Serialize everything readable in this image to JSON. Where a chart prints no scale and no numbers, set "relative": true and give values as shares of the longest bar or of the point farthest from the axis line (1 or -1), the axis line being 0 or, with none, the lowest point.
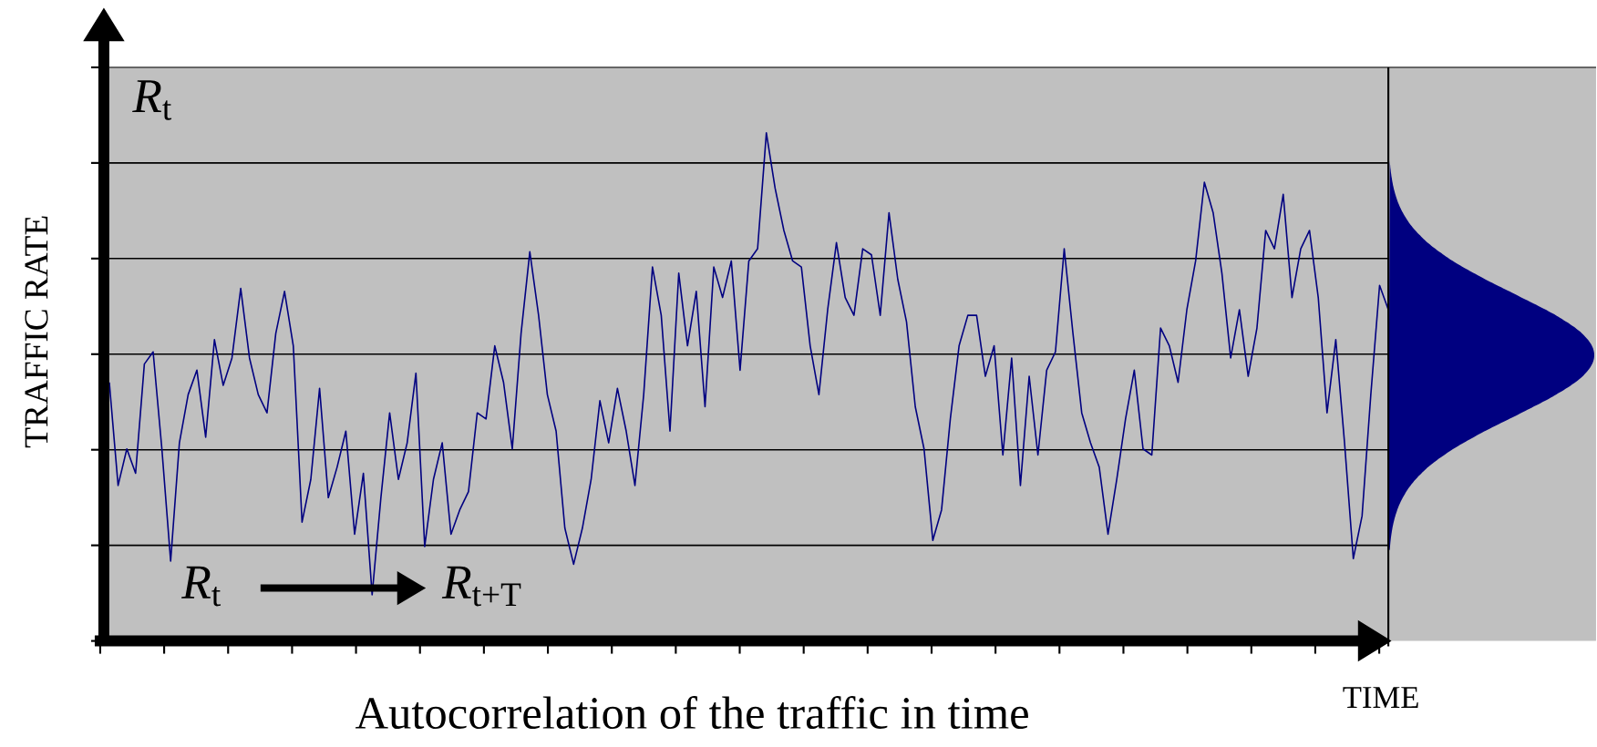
{
  "chart_data": {
    "type": "line",
    "title": "Autocorrelation of the traffic in time",
    "xlabel": "TIME",
    "ylabel": "TRAFFIC RATE",
    "annotations": [
      "*R*$_{t}$",
      "*R*$_{t}$",
      "*R*$_{t+T}$"
    ],
    "relative": true,
    "grid": "y",
    "categories": [
      null,
      null,
      null,
      null,
      null,
      null,
      null,
      null,
      null,
      null,
      null,
      null,
      null,
      null,
      null,
      null,
      null,
      null,
      null,
      null,
      null,
      null,
      null,
      null,
      null,
      null,
      null,
      null,
      null,
      null,
      null,
      null,
      null,
      null,
      null,
      null,
      null,
      null,
      null,
      null,
      null,
      null,
      null,
      null,
      null,
      null,
      null,
      null,
      null,
      null,
      null,
      null,
      null,
      null,
      null,
      null,
      null,
      null,
      null,
      null,
      null,
      null,
      null,
      null,
      null,
      null,
      null,
      null,
      null,
      null,
      null,
      null,
      null,
      null,
      null,
      null,
      null,
      null,
      null,
      null,
      null,
      null,
      null,
      null,
      null,
      null,
      null,
      null,
      null,
      null,
      null,
      null,
      null,
      null,
      null,
      null,
      null,
      null,
      null,
      null,
      null,
      null,
      null,
      null,
      null,
      null,
      null,
      null,
      null,
      null,
      null,
      null,
      null,
      null,
      null,
      null,
      null,
      null,
      null,
      null,
      null,
      null,
      null,
      null,
      null,
      null,
      null,
      null,
      null,
      null,
      null,
      null,
      null,
      null,
      null,
      null,
      null,
      null,
      null,
      null,
      null,
      null,
      null,
      null,
      null,
      null,
      null
    ],
    "series": [
      {
        "color": "#000080",
        "values": [
          0.509,
          0.306,
          0.378,
          0.33,
          0.545,
          0.569,
          0.378,
          0.157,
          0.39,
          0.485,
          0.533,
          0.401,
          0.593,
          0.503,
          0.557,
          0.694,
          0.557,
          0.485,
          0.449,
          0.605,
          0.688,
          0.581,
          0.234,
          0.318,
          0.497,
          0.282,
          0.342,
          0.413,
          0.21,
          0.33,
          0.091,
          0.282,
          0.449,
          0.318,
          0.39,
          0.527,
          0.186,
          0.318,
          0.39,
          0.21,
          0.258,
          0.294,
          0.449,
          0.437,
          0.581,
          0.509,
          0.378,
          0.605,
          0.766,
          0.641,
          0.485,
          0.413,
          0.222,
          0.151,
          0.222,
          0.318,
          0.473,
          0.39,
          0.497,
          0.413,
          0.306,
          0.485,
          0.736,
          0.641,
          0.413,
          0.724,
          0.581,
          0.688,
          0.461,
          0.736,
          0.676,
          0.748,
          0.533,
          0.748,
          0.772,
          1.0,
          0.891,
          0.808,
          0.748,
          0.736,
          0.581,
          0.485,
          0.652,
          0.784,
          0.676,
          0.641,
          0.772,
          0.76,
          0.641,
          0.843,
          0.712,
          0.628,
          0.461,
          0.378,
          0.198,
          0.258,
          0.437,
          0.581,
          0.641,
          0.641,
          0.521,
          0.581,
          0.366,
          0.557,
          0.306,
          0.521,
          0.366,
          0.533,
          0.569,
          0.772,
          0.605,
          0.449,
          0.39,
          0.342,
          0.21,
          0.318,
          0.437,
          0.533,
          0.378,
          0.366,
          0.616,
          0.581,
          0.509,
          0.652,
          0.748,
          0.903,
          0.843,
          0.724,
          0.557,
          0.652,
          0.521,
          0.616,
          0.808,
          0.772,
          0.879,
          0.676,
          0.772,
          0.808,
          0.676,
          0.449,
          0.593,
          0.39,
          0.162,
          0.246,
          0.485,
          0.7,
          0.652
        ]
      }
    ]
  }
}
